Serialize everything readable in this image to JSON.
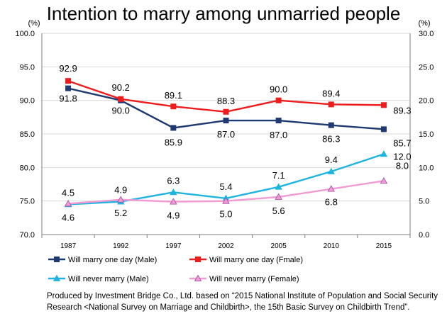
{
  "chart_data": {
    "type": "line",
    "title": "Intention to marry among unmarried people",
    "categories": [
      "1987",
      "1992",
      "1997",
      "2002",
      "2005",
      "2010",
      "2015"
    ],
    "y_left": {
      "unit": "(%)",
      "min": 70,
      "max": 100,
      "step": 5,
      "ticks": [
        "70.0",
        "75.0",
        "80.0",
        "85.0",
        "90.0",
        "95.0",
        "100.0"
      ]
    },
    "y_right": {
      "unit": "(%)",
      "min": 0,
      "max": 30,
      "step": 5,
      "ticks": [
        "0.0",
        "5.0",
        "10.0",
        "15.0",
        "20.0",
        "25.0",
        "30.0"
      ]
    },
    "grid": true,
    "legend_position": "bottom",
    "series": [
      {
        "name": "Will marry one day (Male)",
        "axis": "left",
        "color": "#1f3a70",
        "marker": "square",
        "values": [
          91.8,
          90.0,
          85.9,
          87.0,
          87.0,
          86.3,
          85.7
        ],
        "labels": [
          "91.8",
          "90.0",
          "85.9",
          "87.0",
          "87.0",
          "86.3",
          "85.7"
        ]
      },
      {
        "name": "Will marry one day (Fmale)",
        "axis": "left",
        "color": "#ee1c1c",
        "marker": "square",
        "values": [
          92.9,
          90.2,
          89.1,
          88.3,
          90.0,
          89.4,
          89.3
        ],
        "labels": [
          "92.9",
          "90.2",
          "89.1",
          "88.3",
          "90.0",
          "89.4",
          "89.3"
        ]
      },
      {
        "name": "Will never marry (Male)",
        "axis": "right",
        "color": "#1eb4e0",
        "marker": "triangle",
        "values": [
          4.5,
          4.9,
          6.3,
          5.4,
          7.1,
          9.4,
          12.0
        ],
        "labels": [
          "4.5",
          "4.9",
          "6.3",
          "5.4",
          "7.1",
          "9.4",
          "12.0"
        ]
      },
      {
        "name": "Will never marry (Female)",
        "axis": "right",
        "color": "#f29ad2",
        "marker": "triangle",
        "values": [
          4.6,
          5.2,
          4.9,
          5.0,
          5.6,
          6.8,
          8.0
        ],
        "labels": [
          "4.6",
          "5.2",
          "4.9",
          "5.0",
          "5.6",
          "6.8",
          "8.0"
        ]
      }
    ]
  },
  "note": "Produced by Investment Bridge Co., Ltd. based on “2015 National Institute of Population and Social Security Research <National Survey on Marriage and Childbirth>, the 15th Basic Survey on Childbirth Trend”."
}
